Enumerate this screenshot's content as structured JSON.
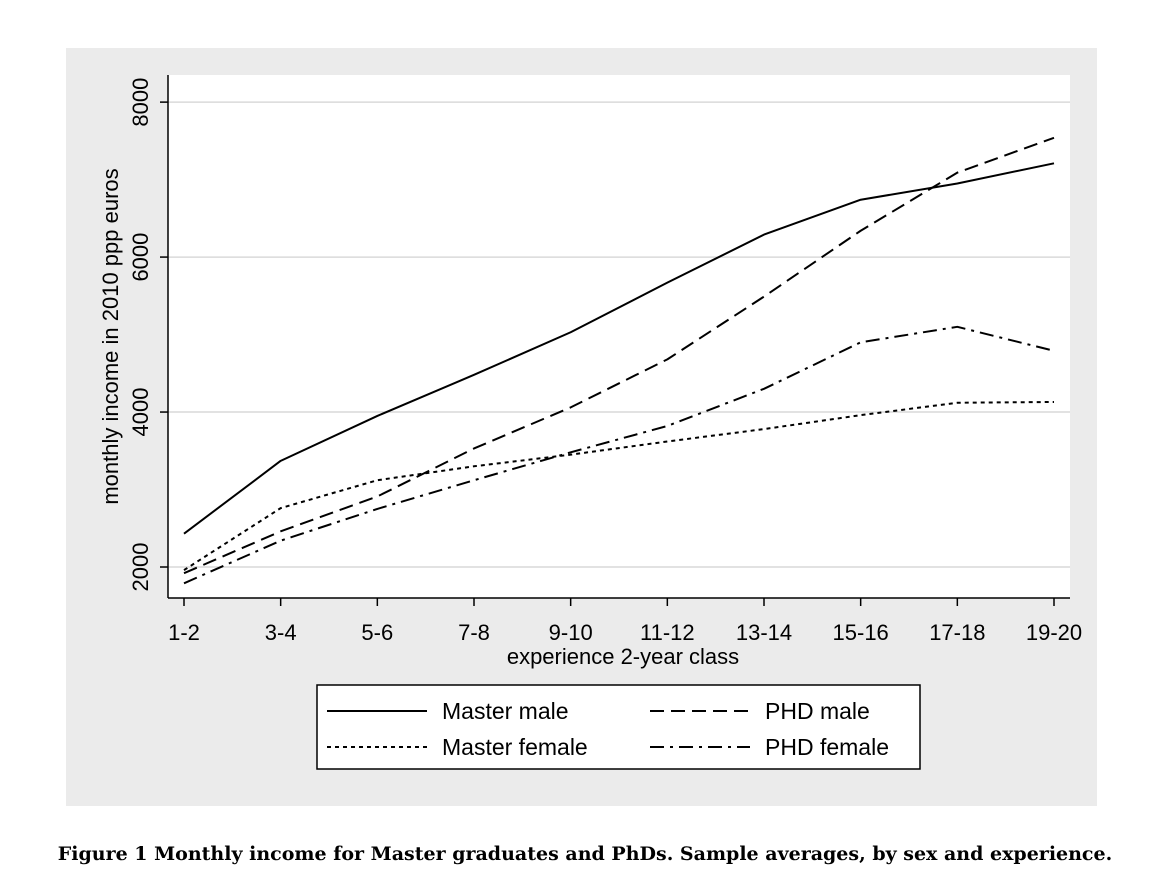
{
  "caption": "Figure 1 Monthly income for Master graduates and PhDs. Sample averages, by sex and experience.",
  "chart_data": {
    "type": "line",
    "xlabel": "experience 2-year class",
    "ylabel": "monthly income in 2010 ppp euros",
    "categories": [
      "1-2",
      "3-4",
      "5-6",
      "7-8",
      "9-10",
      "11-12",
      "13-14",
      "15-16",
      "17-18",
      "19-20"
    ],
    "yticks": [
      2000,
      4000,
      6000,
      8000
    ],
    "ylim": [
      1600,
      8350
    ],
    "grid": true,
    "legend_position": "bottom",
    "series": [
      {
        "name": "Master male",
        "dash": "solid",
        "values": [
          2430,
          3370,
          3950,
          4480,
          5030,
          5670,
          6290,
          6740,
          6950,
          7210
        ]
      },
      {
        "name": "PHD male",
        "dash": "dashed",
        "values": [
          1920,
          2460,
          2910,
          3530,
          4060,
          4680,
          5490,
          6340,
          7090,
          7540
        ]
      },
      {
        "name": "Master female",
        "dash": "dotted",
        "values": [
          1960,
          2760,
          3120,
          3300,
          3450,
          3620,
          3780,
          3960,
          4120,
          4130
        ]
      },
      {
        "name": "PHD female",
        "dash": "dashdot",
        "values": [
          1790,
          2340,
          2750,
          3120,
          3480,
          3820,
          4300,
          4900,
          5100,
          4790
        ]
      }
    ],
    "colors": {
      "line": "#000000",
      "grid": "#ffffff",
      "panel": "#ebebeb",
      "plot": "#ffffff"
    }
  }
}
